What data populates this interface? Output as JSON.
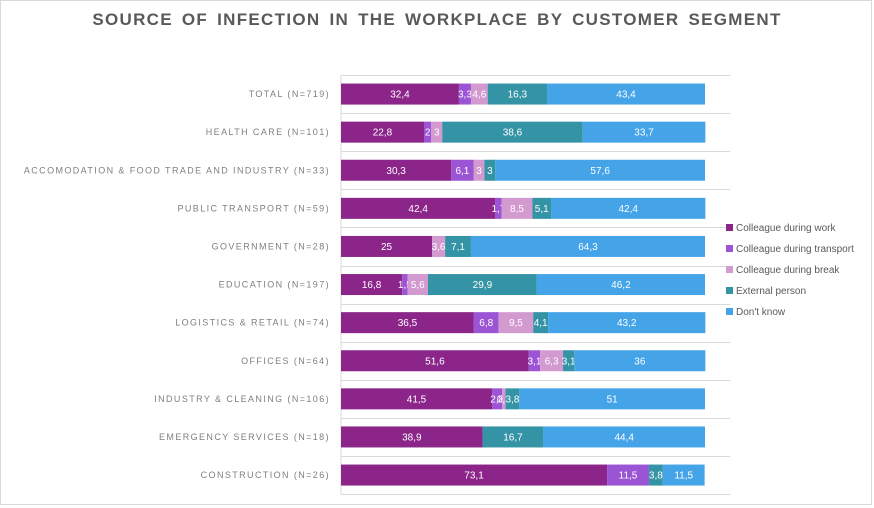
{
  "chart_data": {
    "type": "bar",
    "orientation": "horizontal",
    "stacked": true,
    "normalized_percent": true,
    "title": "SOURCE OF INFECTION IN THE WORKPLACE BY CUSTOMER SEGMENT",
    "xlabel": "",
    "ylabel": "",
    "xlim": [
      0,
      100
    ],
    "grid": true,
    "legend_position": "right",
    "categories": [
      "TOTAL (N=719)",
      "HEALTH CARE (N=101)",
      "ACCOMODATION & FOOD TRADE AND INDUSTRY (N=33)",
      "PUBLIC TRANSPORT (N=59)",
      "GOVERNMENT (N=28)",
      "EDUCATION (N=197)",
      "LOGISTICS & RETAIL (N=74)",
      "OFFICES (N=64)",
      "INDUSTRY & CLEANING (N=106)",
      "EMERGENCY SERVICES (N=18)",
      "CONSTRUCTION (N=26)"
    ],
    "series": [
      {
        "name": "Colleague during work",
        "color": "#8b2589",
        "values": [
          32.4,
          22.8,
          30.3,
          42.4,
          25,
          16.8,
          36.5,
          51.6,
          41.5,
          38.9,
          73.1
        ]
      },
      {
        "name": "Colleague during transport",
        "color": "#9b55d4",
        "values": [
          3.3,
          2,
          6.1,
          1.7,
          0,
          1.5,
          6.8,
          3.1,
          2.8,
          0,
          11.5
        ]
      },
      {
        "name": "Colleague during break",
        "color": "#d39ad0",
        "values": [
          4.6,
          3,
          3,
          8.5,
          3.6,
          5.6,
          9.5,
          6.3,
          0.9,
          0,
          0
        ]
      },
      {
        "name": "External person",
        "color": "#3494a6",
        "values": [
          16.3,
          38.6,
          3,
          5.1,
          7.1,
          29.9,
          4.1,
          3.1,
          3.8,
          16.7,
          3.8
        ]
      },
      {
        "name": "Don't know",
        "color": "#45a4e8",
        "values": [
          43.4,
          33.7,
          57.6,
          42.4,
          64.3,
          46.2,
          43.2,
          36,
          51,
          44.4,
          11.5
        ]
      }
    ],
    "decimal_separator": ","
  }
}
